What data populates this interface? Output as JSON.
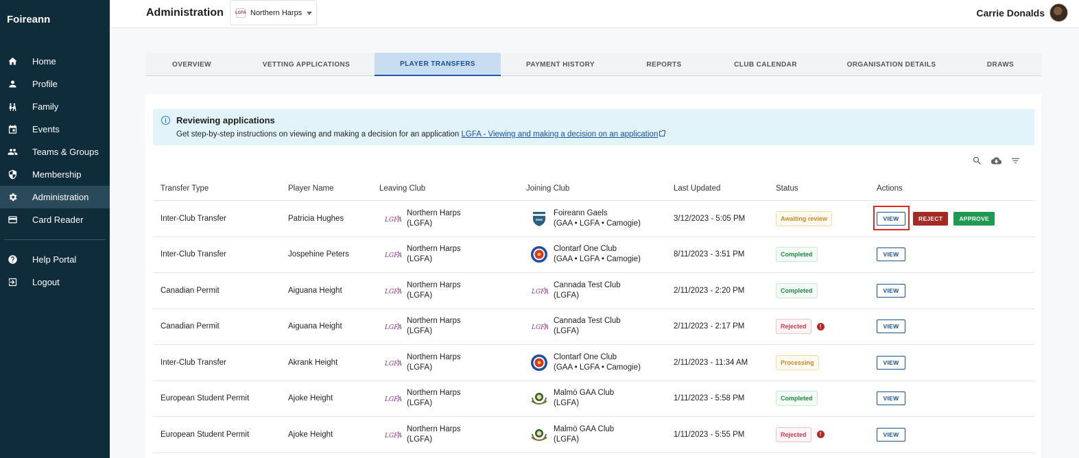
{
  "app": {
    "brand": "Foireann"
  },
  "sidebar": {
    "items": [
      {
        "label": "Home",
        "icon": "home-icon"
      },
      {
        "label": "Profile",
        "icon": "person-icon"
      },
      {
        "label": "Family",
        "icon": "family-icon"
      },
      {
        "label": "Events",
        "icon": "calendar-icon"
      },
      {
        "label": "Teams & Groups",
        "icon": "group-icon"
      },
      {
        "label": "Membership",
        "icon": "shield-icon"
      },
      {
        "label": "Administration",
        "icon": "gear-icon",
        "active": true
      },
      {
        "label": "Card Reader",
        "icon": "card-icon"
      }
    ],
    "bottom_items": [
      {
        "label": "Help Portal",
        "icon": "help-icon"
      },
      {
        "label": "Logout",
        "icon": "logout-icon"
      }
    ]
  },
  "header": {
    "title": "Administration",
    "org_select": {
      "value": "Northern Harps"
    },
    "user_name": "Carrie Donalds"
  },
  "tabs": [
    {
      "label": "OVERVIEW",
      "w": 135
    },
    {
      "label": "VETTING APPLICATIONS",
      "w": 199
    },
    {
      "label": "PLAYER TRANSFERS",
      "w": 184,
      "active": true
    },
    {
      "label": "PAYMENT HISTORY",
      "w": 174
    },
    {
      "label": "REPORTS",
      "w": 128
    },
    {
      "label": "CLUB CALENDAR",
      "w": 168
    },
    {
      "label": "ORGANISATION DETAILS",
      "w": 199
    },
    {
      "label": "DRAWS",
      "w": 119
    }
  ],
  "info": {
    "title": "Reviewing applications",
    "text": "Get step-by-step instructions on viewing and making a decision for an application",
    "link": "LGFA - Viewing and making a decision on an application"
  },
  "table": {
    "headers": {
      "transfer_type": "Transfer Type",
      "player_name": "Player Name",
      "leaving_club": "Leaving Club",
      "joining_club": "Joining Club",
      "last_updated": "Last Updated",
      "status": "Status",
      "actions": "Actions"
    },
    "actions": {
      "view": "VIEW",
      "reject": "REJECT",
      "approve": "APPROVE"
    },
    "rows": [
      {
        "transfer_type": "Inter-Club Transfer",
        "player_name": "Patricia Hughes",
        "leaving_club_name": "Northern Harps",
        "leaving_club_org": "(LGFA)",
        "joining_club_name": "Foireann Gaels",
        "joining_club_org": "(GAA • LGFA • Camogie)",
        "joining_logo": "shield",
        "last_updated": "3/12/2023 - 5:05 PM",
        "status": "Awaiting review",
        "status_kind": "awaiting",
        "alert": false,
        "actions": "full"
      },
      {
        "transfer_type": "Inter-Club Transfer",
        "player_name": "Jospehine Peters",
        "leaving_club_name": "Northern Harps",
        "leaving_club_org": "(LGFA)",
        "joining_club_name": "Clontarf One Club",
        "joining_club_org": "(GAA • LGFA • Camogie)",
        "joining_logo": "crest",
        "last_updated": "8/11/2023 - 3:51 PM",
        "status": "Completed",
        "status_kind": "completed",
        "alert": false,
        "actions": "view"
      },
      {
        "transfer_type": "Canadian Permit",
        "player_name": "Aiguana Height",
        "leaving_club_name": "Northern Harps",
        "leaving_club_org": "(LGFA)",
        "joining_club_name": "Cannada Test Club",
        "joining_club_org": "(LGFA)",
        "joining_logo": "lgfa",
        "last_updated": "2/11/2023 - 2:20 PM",
        "status": "Completed",
        "status_kind": "completed",
        "alert": false,
        "actions": "view"
      },
      {
        "transfer_type": "Canadian Permit",
        "player_name": "Aiguana Height",
        "leaving_club_name": "Northern Harps",
        "leaving_club_org": "(LGFA)",
        "joining_club_name": "Cannada Test Club",
        "joining_club_org": "(LGFA)",
        "joining_logo": "lgfa",
        "last_updated": "2/11/2023 - 2:17 PM",
        "status": "Rejected",
        "status_kind": "rejected",
        "alert": true,
        "actions": "view"
      },
      {
        "transfer_type": "Inter-Club Transfer",
        "player_name": "Akrank Height",
        "leaving_club_name": "Northern Harps",
        "leaving_club_org": "(LGFA)",
        "joining_club_name": "Clontarf One Club",
        "joining_club_org": "(GAA • LGFA • Camogie)",
        "joining_logo": "crest",
        "last_updated": "2/11/2023 - 11:34 AM",
        "status": "Processing",
        "status_kind": "processing",
        "alert": false,
        "actions": "view"
      },
      {
        "transfer_type": "European Student Permit",
        "player_name": "Ajoke Height",
        "leaving_club_name": "Northern Harps",
        "leaving_club_org": "(LGFA)",
        "joining_club_name": "Malmö GAA Club",
        "joining_club_org": "(LGFA)",
        "joining_logo": "wreath",
        "last_updated": "1/11/2023 - 5:58 PM",
        "status": "Completed",
        "status_kind": "completed",
        "alert": false,
        "actions": "view"
      },
      {
        "transfer_type": "European Student Permit",
        "player_name": "Ajoke Height",
        "leaving_club_name": "Northern Harps",
        "leaving_club_org": "(LGFA)",
        "joining_club_name": "Malmö GAA Club",
        "joining_club_org": "(LGFA)",
        "joining_logo": "wreath",
        "last_updated": "1/11/2023 - 5:55 PM",
        "status": "Rejected",
        "status_kind": "rejected",
        "alert": true,
        "actions": "view"
      }
    ]
  },
  "colors": {
    "sidebar_bg": "#0f2c3b",
    "accent": "#1a4f8f",
    "reject": "#a52a24",
    "approve": "#1f9a52",
    "info_bg": "#e2f4f9"
  }
}
